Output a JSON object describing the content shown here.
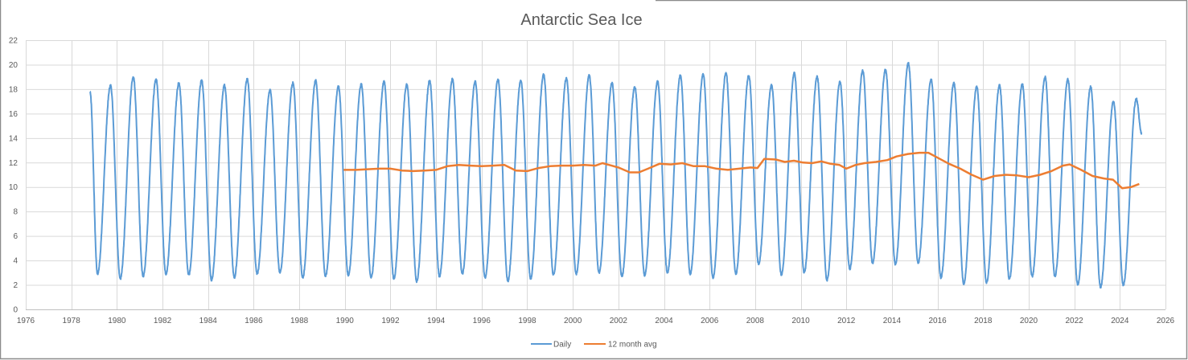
{
  "chart_data": {
    "type": "line",
    "title": "Antarctic Sea Ice",
    "xlabel": "",
    "ylabel": "",
    "xlim": [
      1976,
      2026
    ],
    "ylim": [
      0,
      22
    ],
    "x_ticks": [
      "1976",
      "1978",
      "1980",
      "1982",
      "1984",
      "1986",
      "1988",
      "1990",
      "1992",
      "1994",
      "1996",
      "1998",
      "2000",
      "2002",
      "2004",
      "2006",
      "2008",
      "2010",
      "2012",
      "2014",
      "2016",
      "2018",
      "2020",
      "2022",
      "2024",
      "2026"
    ],
    "y_ticks": [
      "0",
      "2",
      "4",
      "6",
      "8",
      "10",
      "12",
      "14",
      "16",
      "18",
      "20",
      "22"
    ],
    "grid": true,
    "legend_position": "bottom",
    "series": [
      {
        "name": "Daily",
        "color": "#5b9bd5",
        "start": {
          "x": 1978.82,
          "y": 17.8
        },
        "end": {
          "x": 2024.95,
          "y": 14.4
        },
        "annual_minima": [
          [
            1979.15,
            2.9
          ],
          [
            1980.15,
            2.5
          ],
          [
            1981.15,
            2.7
          ],
          [
            1982.15,
            2.9
          ],
          [
            1983.15,
            2.8
          ],
          [
            1984.15,
            2.4
          ],
          [
            1985.15,
            2.6
          ],
          [
            1986.15,
            2.9
          ],
          [
            1987.15,
            3.0
          ],
          [
            1988.15,
            2.6
          ],
          [
            1989.15,
            2.7
          ],
          [
            1990.15,
            2.8
          ],
          [
            1991.15,
            2.6
          ],
          [
            1992.15,
            2.5
          ],
          [
            1993.15,
            2.3
          ],
          [
            1994.15,
            2.7
          ],
          [
            1995.15,
            2.9
          ],
          [
            1996.15,
            2.6
          ],
          [
            1997.15,
            2.3
          ],
          [
            1998.15,
            2.5
          ],
          [
            1999.15,
            2.8
          ],
          [
            2000.15,
            2.9
          ],
          [
            2001.15,
            3.0
          ],
          [
            2002.15,
            2.7
          ],
          [
            2003.15,
            2.8
          ],
          [
            2004.15,
            3.0
          ],
          [
            2005.15,
            2.9
          ],
          [
            2006.15,
            2.6
          ],
          [
            2007.15,
            2.9
          ],
          [
            2008.15,
            3.7
          ],
          [
            2009.15,
            2.8
          ],
          [
            2010.15,
            3.0
          ],
          [
            2011.15,
            2.4
          ],
          [
            2012.15,
            3.3
          ],
          [
            2013.15,
            3.8
          ],
          [
            2014.15,
            3.7
          ],
          [
            2015.15,
            3.8
          ],
          [
            2016.15,
            2.6
          ],
          [
            2017.15,
            2.1
          ],
          [
            2018.15,
            2.2
          ],
          [
            2019.15,
            2.5
          ],
          [
            2020.15,
            2.7
          ],
          [
            2021.15,
            2.7
          ],
          [
            2022.15,
            2.0
          ],
          [
            2023.15,
            1.8
          ],
          [
            2024.15,
            2.0
          ]
        ],
        "annual_maxima": [
          [
            1979.72,
            18.3
          ],
          [
            1980.72,
            19.0
          ],
          [
            1981.72,
            18.8
          ],
          [
            1982.72,
            18.5
          ],
          [
            1983.72,
            18.7
          ],
          [
            1984.72,
            18.3
          ],
          [
            1985.72,
            18.8
          ],
          [
            1986.72,
            17.9
          ],
          [
            1987.72,
            18.5
          ],
          [
            1988.72,
            18.7
          ],
          [
            1989.72,
            18.2
          ],
          [
            1990.72,
            18.4
          ],
          [
            1991.72,
            18.6
          ],
          [
            1992.72,
            18.4
          ],
          [
            1993.72,
            18.7
          ],
          [
            1994.72,
            18.8
          ],
          [
            1995.72,
            18.6
          ],
          [
            1996.72,
            18.8
          ],
          [
            1997.72,
            18.7
          ],
          [
            1998.72,
            19.2
          ],
          [
            1999.72,
            18.9
          ],
          [
            2000.72,
            19.1
          ],
          [
            2001.72,
            18.5
          ],
          [
            2002.72,
            18.2
          ],
          [
            2003.72,
            18.6
          ],
          [
            2004.72,
            19.1
          ],
          [
            2005.72,
            19.2
          ],
          [
            2006.72,
            19.3
          ],
          [
            2007.72,
            19.1
          ],
          [
            2008.72,
            18.3
          ],
          [
            2009.72,
            19.3
          ],
          [
            2010.72,
            19.0
          ],
          [
            2011.72,
            18.6
          ],
          [
            2012.72,
            19.5
          ],
          [
            2013.72,
            19.6
          ],
          [
            2014.72,
            20.1
          ],
          [
            2015.72,
            18.8
          ],
          [
            2016.72,
            18.5
          ],
          [
            2017.72,
            18.2
          ],
          [
            2018.72,
            18.3
          ],
          [
            2019.72,
            18.4
          ],
          [
            2020.72,
            19.0
          ],
          [
            2021.72,
            18.8
          ],
          [
            2022.72,
            18.2
          ],
          [
            2023.72,
            17.0
          ],
          [
            2024.72,
            17.2
          ]
        ]
      },
      {
        "name": "12 month avg",
        "color": "#ed7d31",
        "points": [
          [
            1989.95,
            11.4
          ],
          [
            1990.5,
            11.4
          ],
          [
            1991.0,
            11.45
          ],
          [
            1991.5,
            11.5
          ],
          [
            1992.0,
            11.5
          ],
          [
            1992.5,
            11.35
          ],
          [
            1993.0,
            11.3
          ],
          [
            1993.5,
            11.35
          ],
          [
            1994.0,
            11.4
          ],
          [
            1994.5,
            11.7
          ],
          [
            1995.0,
            11.8
          ],
          [
            1995.5,
            11.75
          ],
          [
            1996.0,
            11.7
          ],
          [
            1996.5,
            11.75
          ],
          [
            1997.0,
            11.8
          ],
          [
            1997.5,
            11.35
          ],
          [
            1998.0,
            11.3
          ],
          [
            1998.5,
            11.55
          ],
          [
            1999.0,
            11.7
          ],
          [
            1999.5,
            11.75
          ],
          [
            2000.0,
            11.75
          ],
          [
            2000.5,
            11.8
          ],
          [
            2001.0,
            11.75
          ],
          [
            2001.3,
            11.95
          ],
          [
            2001.7,
            11.75
          ],
          [
            2002.0,
            11.6
          ],
          [
            2002.5,
            11.2
          ],
          [
            2002.9,
            11.2
          ],
          [
            2003.3,
            11.5
          ],
          [
            2003.8,
            11.9
          ],
          [
            2004.3,
            11.85
          ],
          [
            2004.8,
            11.95
          ],
          [
            2005.3,
            11.7
          ],
          [
            2005.8,
            11.7
          ],
          [
            2006.3,
            11.5
          ],
          [
            2006.8,
            11.4
          ],
          [
            2007.3,
            11.5
          ],
          [
            2007.8,
            11.6
          ],
          [
            2008.1,
            11.55
          ],
          [
            2008.4,
            12.3
          ],
          [
            2008.9,
            12.25
          ],
          [
            2009.3,
            12.05
          ],
          [
            2009.7,
            12.15
          ],
          [
            2010.1,
            12.0
          ],
          [
            2010.5,
            11.95
          ],
          [
            2010.9,
            12.1
          ],
          [
            2011.3,
            11.9
          ],
          [
            2011.7,
            11.8
          ],
          [
            2012.0,
            11.5
          ],
          [
            2012.4,
            11.8
          ],
          [
            2012.8,
            11.95
          ],
          [
            2013.3,
            12.05
          ],
          [
            2013.8,
            12.2
          ],
          [
            2014.2,
            12.5
          ],
          [
            2014.7,
            12.7
          ],
          [
            2015.2,
            12.8
          ],
          [
            2015.6,
            12.8
          ],
          [
            2016.0,
            12.4
          ],
          [
            2016.5,
            11.9
          ],
          [
            2017.0,
            11.5
          ],
          [
            2017.5,
            11.0
          ],
          [
            2018.0,
            10.6
          ],
          [
            2018.5,
            10.9
          ],
          [
            2019.0,
            11.0
          ],
          [
            2019.5,
            10.95
          ],
          [
            2020.0,
            10.8
          ],
          [
            2020.5,
            11.0
          ],
          [
            2021.0,
            11.3
          ],
          [
            2021.5,
            11.75
          ],
          [
            2021.8,
            11.85
          ],
          [
            2022.3,
            11.4
          ],
          [
            2022.8,
            10.9
          ],
          [
            2023.3,
            10.7
          ],
          [
            2023.7,
            10.6
          ],
          [
            2024.1,
            9.9
          ],
          [
            2024.5,
            10.0
          ],
          [
            2024.85,
            10.25
          ]
        ]
      }
    ]
  }
}
